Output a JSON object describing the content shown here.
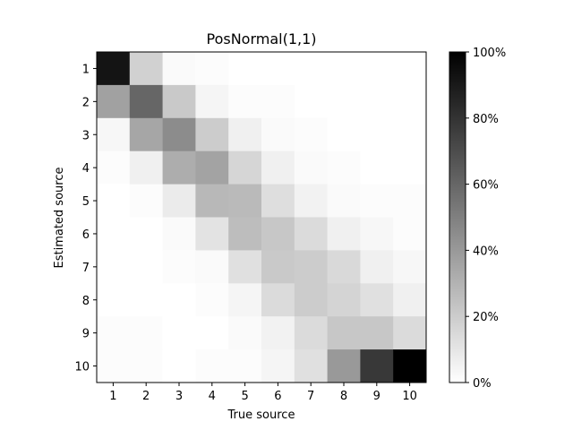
{
  "chart_data": {
    "type": "heatmap",
    "title": "PosNormal(1,1)",
    "xlabel": "True source",
    "ylabel": "Estimated source",
    "x_categories": [
      "1",
      "2",
      "3",
      "4",
      "5",
      "6",
      "7",
      "8",
      "9",
      "10"
    ],
    "y_categories": [
      "1",
      "2",
      "3",
      "4",
      "5",
      "6",
      "7",
      "8",
      "9",
      "10"
    ],
    "colormap": "gray_r",
    "colorbar": {
      "min": 0,
      "max": 100,
      "unit": "%",
      "ticks": [
        "0%",
        "20%",
        "40%",
        "60%",
        "80%",
        "100%"
      ],
      "tick_values": [
        0,
        20,
        40,
        60,
        80,
        100
      ]
    },
    "values": [
      [
        92,
        18,
        2,
        1,
        0,
        0,
        0,
        0,
        0,
        0
      ],
      [
        37,
        60,
        21,
        4,
        1,
        1,
        0,
        0,
        0,
        0
      ],
      [
        3,
        35,
        45,
        20,
        6,
        2,
        1,
        0,
        0,
        0
      ],
      [
        1,
        6,
        32,
        36,
        16,
        6,
        2,
        1,
        0,
        0
      ],
      [
        0,
        1,
        8,
        28,
        27,
        13,
        5,
        2,
        1,
        1
      ],
      [
        0,
        0,
        2,
        11,
        26,
        22,
        14,
        6,
        3,
        1
      ],
      [
        0,
        0,
        1,
        2,
        12,
        21,
        20,
        15,
        6,
        3
      ],
      [
        0,
        0,
        0,
        1,
        4,
        14,
        20,
        17,
        12,
        6
      ],
      [
        1,
        1,
        0,
        0,
        2,
        5,
        14,
        22,
        22,
        14
      ],
      [
        1,
        1,
        0,
        1,
        1,
        4,
        12,
        40,
        78,
        100
      ]
    ]
  }
}
